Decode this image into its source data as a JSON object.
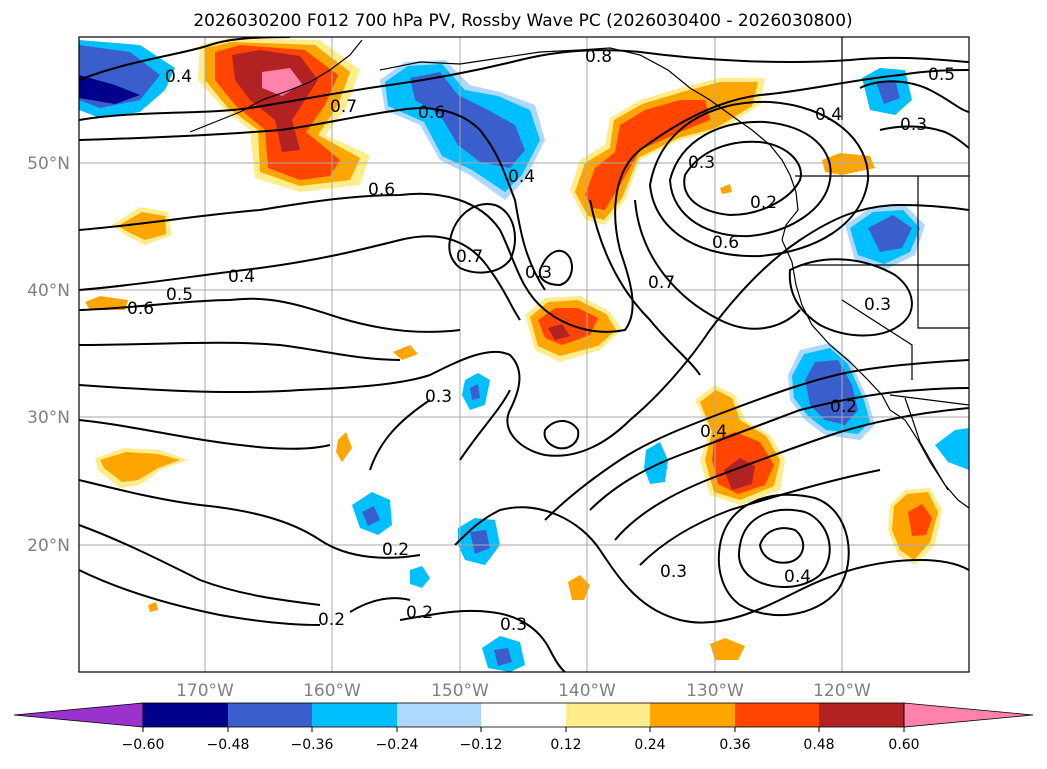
{
  "title": "2026030200 F012 700 hPa PV, Rossby Wave PC (2026030400 - 2026030800)",
  "map": {
    "lat_ticks": [
      "50°N",
      "40°N",
      "30°N",
      "20°N"
    ],
    "lon_ticks": [
      "170°W",
      "160°W",
      "150°W",
      "140°W",
      "130°W",
      "120°W"
    ]
  },
  "contour_labels": [
    "0.4",
    "0.7",
    "0.6",
    "0.4",
    "0.8",
    "0.5",
    "0.4",
    "0.3",
    "0.3",
    "0.2",
    "0.6",
    "0.6",
    "0.7",
    "0.4",
    "0.5",
    "0.6",
    "0.3",
    "0.7",
    "0.3",
    "0.3",
    "0.2",
    "0.4",
    "0.2",
    "0.3",
    "0.4",
    "0.2",
    "0.2",
    "0.3"
  ],
  "colorbar": {
    "ticks": [
      "−0.60",
      "−0.48",
      "−0.36",
      "−0.24",
      "−0.12",
      "0.12",
      "0.24",
      "0.36",
      "0.48",
      "0.60"
    ],
    "colors": {
      "under": "#9a32cd",
      "neg_060": "#00008b",
      "neg_048": "#3a5fcd",
      "neg_036": "#00bfff",
      "neg_024": "#add8ff",
      "neutral": "#ffffff",
      "pos_012": "#ffec8b",
      "pos_024": "#ffa500",
      "pos_036": "#ff4500",
      "pos_048": "#b22222",
      "over": "#ff82ab"
    }
  }
}
